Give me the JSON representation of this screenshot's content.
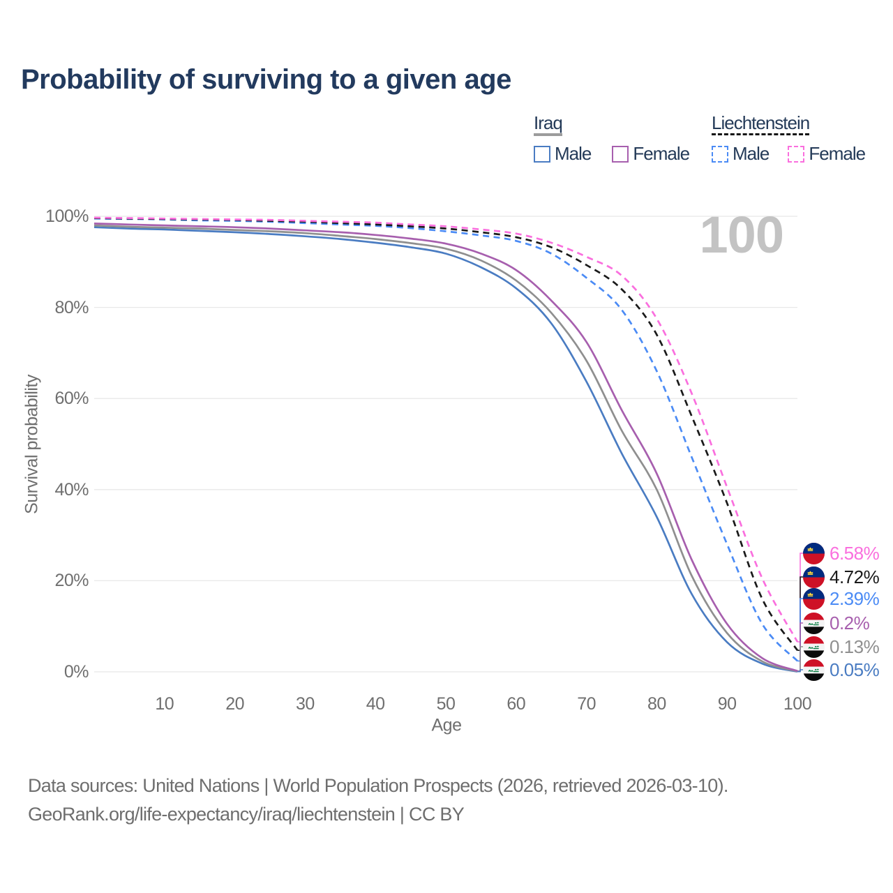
{
  "page": {
    "title": "Probability of surviving to a given age"
  },
  "hover_label": "100",
  "legend": {
    "groups": [
      {
        "name": "Iraq",
        "line_style": "solid",
        "underline_color": "#9c9c9c",
        "items": [
          {
            "label": "Male",
            "color": "#4a7cc2"
          },
          {
            "label": "Female",
            "color": "#a75fae"
          }
        ]
      },
      {
        "name": "Liechtenstein",
        "line_style": "dashed",
        "underline_color": "#141414",
        "items": [
          {
            "label": "Male",
            "color": "#4b8bf5"
          },
          {
            "label": "Female",
            "color": "#fa6fde"
          }
        ]
      }
    ]
  },
  "axes": {
    "x_title": "Age",
    "y_title": "Survival probability"
  },
  "chart_data": {
    "type": "line",
    "title": "Probability of surviving to a given age",
    "xlabel": "Age",
    "ylabel": "Survival probability",
    "xlim": [
      0,
      100
    ],
    "ylim": [
      0,
      100
    ],
    "x_ticks": [
      10,
      20,
      30,
      40,
      50,
      60,
      70,
      80,
      90,
      100
    ],
    "y_ticks": [
      0,
      20,
      40,
      60,
      80,
      100
    ],
    "y_tick_suffix": "%",
    "grid": "horizontal",
    "gridline_color": "#e8e8e8",
    "hover_age": 100,
    "x": [
      0,
      5,
      10,
      15,
      20,
      25,
      30,
      35,
      40,
      45,
      50,
      55,
      60,
      65,
      70,
      75,
      80,
      85,
      90,
      95,
      100
    ],
    "series": [
      {
        "name": "Iraq Male",
        "country": "Iraq",
        "sex": "Male",
        "flag": "iraq",
        "color": "#4a7cc2",
        "line_style": "solid",
        "end_label": "0.05%",
        "values": [
          97.6,
          97.3,
          97.1,
          96.8,
          96.5,
          96.1,
          95.6,
          95.0,
          94.2,
          93.2,
          91.8,
          88.8,
          84.2,
          76.5,
          63.7,
          48.0,
          34.0,
          17.0,
          6.5,
          1.8,
          0.05
        ]
      },
      {
        "name": "Iraq Both sexes",
        "country": "Iraq",
        "sex": "Both sexes",
        "flag": "iraq",
        "color": "#8f8f8f",
        "line_style": "solid",
        "end_label": "0.13%",
        "values": [
          98.0,
          97.7,
          97.5,
          97.3,
          97.0,
          96.7,
          96.3,
          95.7,
          95.0,
          94.1,
          92.9,
          90.3,
          85.9,
          78.8,
          68.3,
          53.0,
          40.0,
          21.0,
          8.5,
          2.3,
          0.13
        ]
      },
      {
        "name": "Iraq Female",
        "country": "Iraq",
        "sex": "Female",
        "flag": "iraq",
        "color": "#a75fae",
        "line_style": "solid",
        "end_label": "0.2%",
        "values": [
          98.4,
          98.2,
          98.0,
          97.8,
          97.6,
          97.3,
          96.9,
          96.5,
          95.9,
          95.1,
          94.0,
          91.8,
          88.2,
          81.5,
          72.4,
          57.5,
          43.5,
          24.5,
          10.5,
          3.0,
          0.2
        ]
      },
      {
        "name": "Liechtenstein Male",
        "country": "Liechtenstein",
        "sex": "Male",
        "flag": "liechtenstein",
        "color": "#4b8bf5",
        "line_style": "dashed",
        "end_label": "2.39%",
        "values": [
          99.5,
          99.4,
          99.3,
          99.1,
          99.0,
          98.8,
          98.5,
          98.2,
          97.9,
          97.4,
          96.7,
          95.8,
          94.6,
          91.8,
          86.5,
          79.5,
          66.0,
          47.0,
          28.0,
          10.5,
          2.39
        ]
      },
      {
        "name": "Liechtenstein Both sexes",
        "country": "Liechtenstein",
        "sex": "Both sexes",
        "flag": "liechtenstein",
        "color": "#1a1a1a",
        "line_style": "dashed",
        "end_label": "4.72%",
        "values": [
          99.6,
          99.5,
          99.4,
          99.3,
          99.2,
          99.0,
          98.8,
          98.5,
          98.2,
          97.8,
          97.3,
          96.5,
          95.4,
          93.2,
          89.3,
          84.0,
          74.0,
          56.0,
          37.0,
          16.0,
          4.72
        ]
      },
      {
        "name": "Liechtenstein Female",
        "country": "Liechtenstein",
        "sex": "Female",
        "flag": "liechtenstein",
        "color": "#fa6fde",
        "line_style": "dashed",
        "end_label": "6.58%",
        "values": [
          99.7,
          99.6,
          99.5,
          99.4,
          99.3,
          99.2,
          99.0,
          98.8,
          98.6,
          98.2,
          97.8,
          97.1,
          96.2,
          94.2,
          91.1,
          87.0,
          77.5,
          61.0,
          40.5,
          20.5,
          6.58
        ]
      }
    ]
  },
  "footer": {
    "line1": "Data sources: United Nations | World Population Prospects (2026, retrieved 2026-03-10).",
    "line2": "GeoRank.org/life-expectancy/iraq/liechtenstein | CC BY"
  }
}
